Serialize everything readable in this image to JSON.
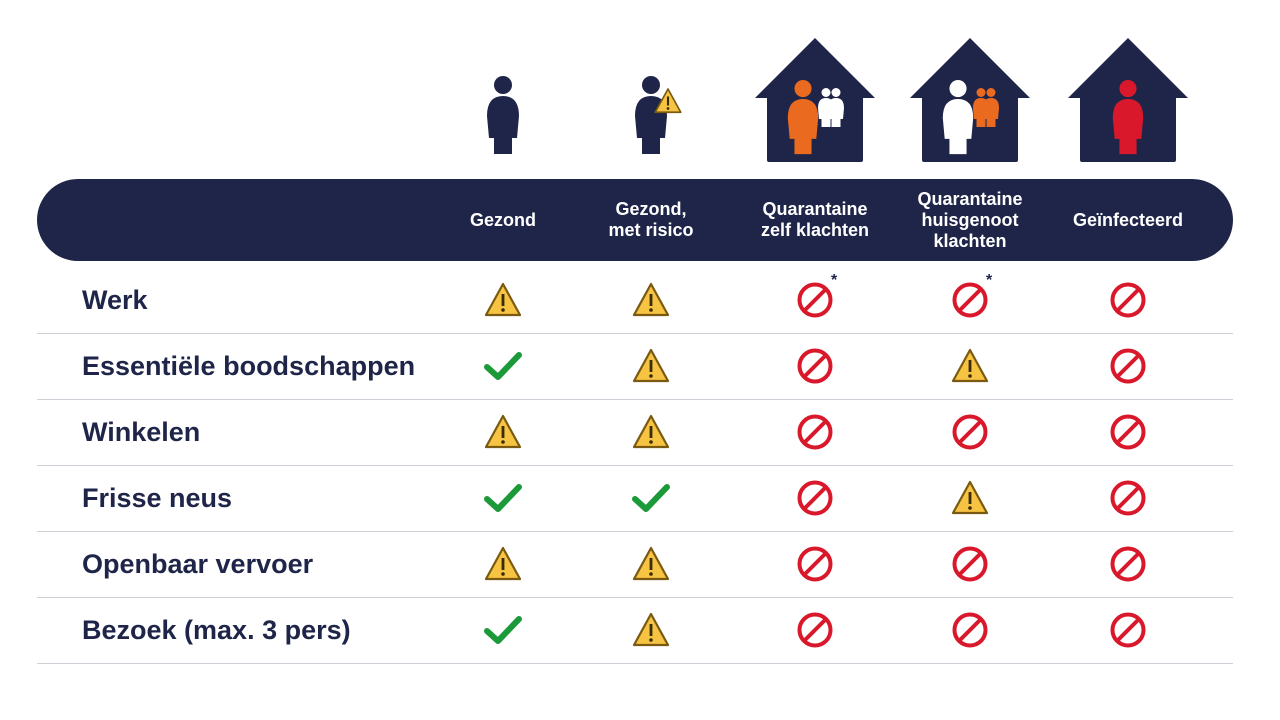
{
  "colors": {
    "navy": "#1f2548",
    "orange": "#ea6b1f",
    "red": "#d9192b",
    "green": "#1c9a3a",
    "warning_yellow": "#f6c342"
  },
  "columns": [
    {
      "label": "Gezond",
      "icon": "person-icon"
    },
    {
      "label": "Gezond,\nmet risico",
      "icon": "person-warning-icon"
    },
    {
      "label": "Quarantaine\nzelf klachten",
      "icon": "house-orange-person-icon"
    },
    {
      "label": "Quarantaine\nhuisgenoot\nklachten",
      "icon": "house-white-person-icon"
    },
    {
      "label": "Geïnfecteerd",
      "icon": "house-red-person-icon"
    }
  ],
  "rows": [
    {
      "label": "Werk",
      "cells": [
        "warning",
        "warning",
        "forbidden",
        "forbidden",
        "forbidden"
      ],
      "asterisk": [
        false,
        false,
        true,
        true,
        false
      ]
    },
    {
      "label": "Essentiële boodschappen",
      "cells": [
        "check",
        "warning",
        "forbidden",
        "warning",
        "forbidden"
      ],
      "asterisk": [
        false,
        false,
        false,
        false,
        false
      ]
    },
    {
      "label": "Winkelen",
      "cells": [
        "warning",
        "warning",
        "forbidden",
        "forbidden",
        "forbidden"
      ],
      "asterisk": [
        false,
        false,
        false,
        false,
        false
      ]
    },
    {
      "label": "Frisse neus",
      "cells": [
        "check",
        "check",
        "forbidden",
        "warning",
        "forbidden"
      ],
      "asterisk": [
        false,
        false,
        false,
        false,
        false
      ]
    },
    {
      "label": "Openbaar vervoer",
      "cells": [
        "warning",
        "warning",
        "forbidden",
        "forbidden",
        "forbidden"
      ],
      "asterisk": [
        false,
        false,
        false,
        false,
        false
      ]
    },
    {
      "label": "Bezoek (max. 3 pers)",
      "cells": [
        "check",
        "warning",
        "forbidden",
        "forbidden",
        "forbidden"
      ],
      "asterisk": [
        false,
        false,
        false,
        false,
        false
      ]
    }
  ],
  "asterisk_symbol": "*"
}
